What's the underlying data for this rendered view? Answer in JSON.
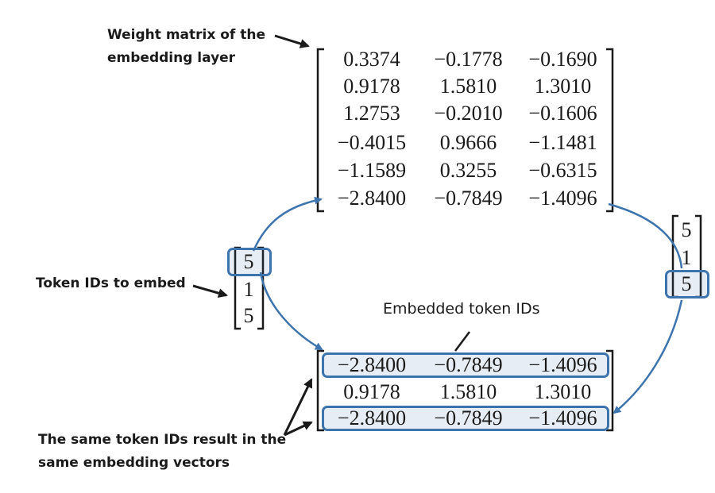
{
  "annotations": {
    "weight_matrix": [
      "Weight matrix of the",
      "embedding layer"
    ],
    "token_ids": "Token IDs to embed",
    "embedded": "Embedded token IDs",
    "same_ids": [
      "The same token IDs result in the",
      "same embedding vectors"
    ]
  },
  "weight_matrix": {
    "rows": [
      [
        "0.3374",
        "−0.1778",
        "−0.1690"
      ],
      [
        "0.9178",
        "1.5810",
        "1.3010"
      ],
      [
        "1.2753",
        "−0.2010",
        "−0.1606"
      ],
      [
        "−0.4015",
        "0.9666",
        "−1.1481"
      ],
      [
        "−1.1589",
        "0.3255",
        "−0.6315"
      ],
      [
        "−2.8400",
        "−0.7849",
        "−1.4096"
      ]
    ]
  },
  "token_ids_left": [
    "5",
    "1",
    "5"
  ],
  "token_ids_right": [
    "5",
    "1",
    "5"
  ],
  "embedded_matrix": {
    "rows": [
      [
        "−2.8400",
        "−0.7849",
        "−1.4096"
      ],
      [
        "0.9178",
        "1.5810",
        "1.3010"
      ],
      [
        "−2.8400",
        "−0.7849",
        "−1.4096"
      ]
    ]
  },
  "colors": {
    "accent": "#3d74ad",
    "text": "#1a1a1a"
  }
}
